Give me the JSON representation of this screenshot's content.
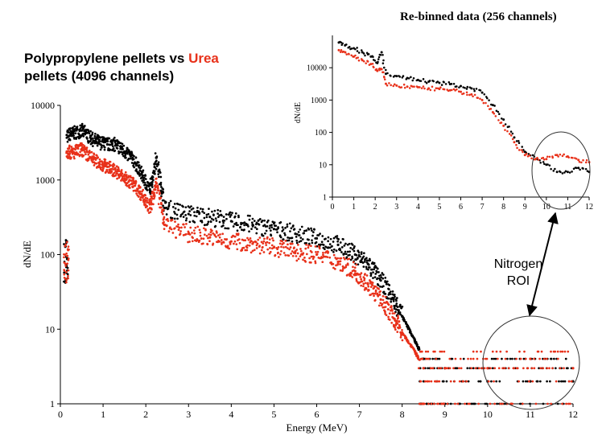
{
  "header": {
    "title_part1": "Polypropylene pellets vs ",
    "title_accent": "Urea",
    "title_part2": "pellets (4096 channels)",
    "accent_color": "#e8311a"
  },
  "inset": {
    "title": "Re-binned data (256 channels)"
  },
  "annotation": {
    "line1": "Nitrogen",
    "line2": "ROI"
  },
  "colors": {
    "polypropylene": "#000000",
    "urea": "#e8311a"
  },
  "chart_data": [
    {
      "type": "scatter",
      "xlabel": "Energy (MeV)",
      "ylabel": "dN/dE",
      "xlim": [
        0,
        12
      ],
      "ylim": [
        1,
        10000
      ],
      "yscale": "log",
      "grid": false,
      "x_ticks": [
        0,
        1,
        2,
        3,
        4,
        5,
        6,
        7,
        8,
        9,
        10,
        11,
        12
      ],
      "y_ticks": [
        1,
        10,
        100,
        1000,
        10000
      ],
      "series": [
        {
          "color": "#000000",
          "points": [
            [
              0.15,
              4000
            ],
            [
              0.3,
              4200
            ],
            [
              0.5,
              4600
            ],
            [
              0.7,
              3700
            ],
            [
              0.9,
              3200
            ],
            [
              1.1,
              3000
            ],
            [
              1.3,
              3000
            ],
            [
              1.5,
              2400
            ],
            [
              1.7,
              1900
            ],
            [
              1.9,
              1200
            ],
            [
              2.1,
              720
            ],
            [
              2.25,
              2000
            ],
            [
              2.45,
              420
            ],
            [
              3.0,
              350
            ],
            [
              3.5,
              320
            ],
            [
              4.0,
              280
            ],
            [
              4.5,
              250
            ],
            [
              5.0,
              220
            ],
            [
              5.5,
              190
            ],
            [
              6.0,
              165
            ],
            [
              6.5,
              135
            ],
            [
              6.9,
              100
            ],
            [
              7.2,
              75
            ],
            [
              7.5,
              45
            ],
            [
              7.8,
              25
            ],
            [
              8.0,
              15
            ],
            [
              8.3,
              7
            ],
            [
              8.5,
              4
            ],
            [
              9.0,
              3
            ],
            [
              10.0,
              2
            ],
            [
              11.0,
              2
            ],
            [
              12.0,
              2
            ]
          ]
        },
        {
          "color": "#e8311a",
          "points": [
            [
              0.15,
              2400
            ],
            [
              0.3,
              2300
            ],
            [
              0.5,
              2600
            ],
            [
              0.7,
              2000
            ],
            [
              0.9,
              1700
            ],
            [
              1.1,
              1500
            ],
            [
              1.3,
              1300
            ],
            [
              1.5,
              1050
            ],
            [
              1.7,
              900
            ],
            [
              1.9,
              650
            ],
            [
              2.1,
              420
            ],
            [
              2.25,
              900
            ],
            [
              2.45,
              250
            ],
            [
              3.0,
              190
            ],
            [
              3.5,
              170
            ],
            [
              4.0,
              150
            ],
            [
              4.5,
              140
            ],
            [
              5.0,
              125
            ],
            [
              5.5,
              110
            ],
            [
              6.0,
              100
            ],
            [
              6.5,
              80
            ],
            [
              6.9,
              60
            ],
            [
              7.2,
              40
            ],
            [
              7.5,
              25
            ],
            [
              7.8,
              14
            ],
            [
              8.0,
              9
            ],
            [
              8.3,
              5
            ],
            [
              8.5,
              3
            ],
            [
              9.0,
              3
            ],
            [
              10.0,
              3
            ],
            [
              11.0,
              4
            ],
            [
              12.0,
              3
            ]
          ]
        }
      ]
    },
    {
      "type": "scatter",
      "title": "Re-binned data (256 channels)",
      "xlabel": "",
      "ylabel": "dN/dE",
      "xlim": [
        0,
        12
      ],
      "ylim": [
        1,
        100000
      ],
      "yscale": "log",
      "grid": false,
      "x_ticks": [
        0,
        1,
        2,
        3,
        4,
        5,
        6,
        7,
        8,
        9,
        10,
        11,
        12
      ],
      "y_ticks": [
        1,
        10,
        100,
        1000,
        10000
      ],
      "series": [
        {
          "color": "#000000",
          "points": [
            [
              0.3,
              60000
            ],
            [
              0.6,
              50000
            ],
            [
              1.0,
              40000
            ],
            [
              1.4,
              30000
            ],
            [
              1.8,
              22000
            ],
            [
              2.1,
              14000
            ],
            [
              2.3,
              30000
            ],
            [
              2.5,
              6500
            ],
            [
              3,
              5500
            ],
            [
              3.5,
              4800
            ],
            [
              4,
              4200
            ],
            [
              4.5,
              3700
            ],
            [
              5,
              3400
            ],
            [
              5.5,
              3100
            ],
            [
              6,
              2700
            ],
            [
              6.5,
              2300
            ],
            [
              7,
              1700
            ],
            [
              7.5,
              700
            ],
            [
              8,
              250
            ],
            [
              8.5,
              70
            ],
            [
              9,
              25
            ],
            [
              9.5,
              15
            ],
            [
              10,
              10
            ],
            [
              10.5,
              6
            ],
            [
              11,
              6
            ],
            [
              11.5,
              8
            ],
            [
              12,
              6
            ]
          ]
        },
        {
          "color": "#e8311a",
          "points": [
            [
              0.3,
              35000
            ],
            [
              0.6,
              30000
            ],
            [
              1.0,
              22000
            ],
            [
              1.4,
              17000
            ],
            [
              1.8,
              13000
            ],
            [
              2.1,
              8000
            ],
            [
              2.3,
              9000
            ],
            [
              2.5,
              3200
            ],
            [
              3,
              2800
            ],
            [
              3.5,
              2600
            ],
            [
              4,
              2500
            ],
            [
              4.5,
              2300
            ],
            [
              5,
              2200
            ],
            [
              5.5,
              2000
            ],
            [
              6,
              1800
            ],
            [
              6.5,
              1500
            ],
            [
              7,
              1000
            ],
            [
              7.5,
              420
            ],
            [
              8,
              160
            ],
            [
              8.5,
              50
            ],
            [
              9,
              20
            ],
            [
              9.5,
              15
            ],
            [
              10,
              15
            ],
            [
              10.5,
              20
            ],
            [
              11,
              18
            ],
            [
              11.5,
              14
            ],
            [
              12,
              12
            ]
          ]
        }
      ]
    }
  ]
}
